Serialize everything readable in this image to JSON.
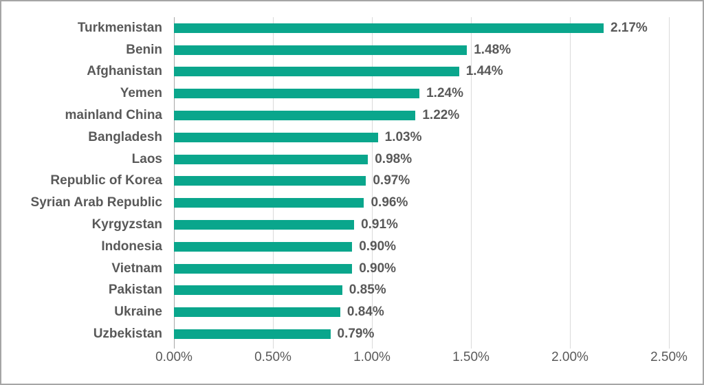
{
  "chart_data": {
    "type": "bar",
    "orientation": "horizontal",
    "title": "",
    "xlabel": "",
    "ylabel": "",
    "categories": [
      "Turkmenistan",
      "Benin",
      "Afghanistan",
      "Yemen",
      "mainland China",
      "Bangladesh",
      "Laos",
      "Republic of Korea",
      "Syrian Arab Republic",
      "Kyrgyzstan",
      "Indonesia",
      "Vietnam",
      "Pakistan",
      "Ukraine",
      "Uzbekistan"
    ],
    "values": [
      2.17,
      1.48,
      1.44,
      1.24,
      1.22,
      1.03,
      0.98,
      0.97,
      0.96,
      0.91,
      0.9,
      0.9,
      0.85,
      0.84,
      0.79
    ],
    "value_labels": [
      "2.17%",
      "1.48%",
      "1.44%",
      "1.24%",
      "1.22%",
      "1.03%",
      "0.98%",
      "0.97%",
      "0.96%",
      "0.91%",
      "0.90%",
      "0.90%",
      "0.85%",
      "0.84%",
      "0.79%"
    ],
    "xlim": [
      0,
      2.5
    ],
    "x_ticks": [
      {
        "value": 0.0,
        "label": "0.00%"
      },
      {
        "value": 0.5,
        "label": "0.50%"
      },
      {
        "value": 1.0,
        "label": "1.00%"
      },
      {
        "value": 1.5,
        "label": "1.50%"
      },
      {
        "value": 2.0,
        "label": "2.00%"
      },
      {
        "value": 2.5,
        "label": "2.50%"
      }
    ],
    "grid": "vertical-gridlines-on",
    "legend": "none"
  },
  "style": {
    "bar_color": "#0aa68c",
    "label_color": "#595959",
    "gridline_color": "#d9d9d9",
    "axis_line_color": "#a6a6a6",
    "frame_border_color": "#a6a6a6",
    "background": "#ffffff"
  }
}
